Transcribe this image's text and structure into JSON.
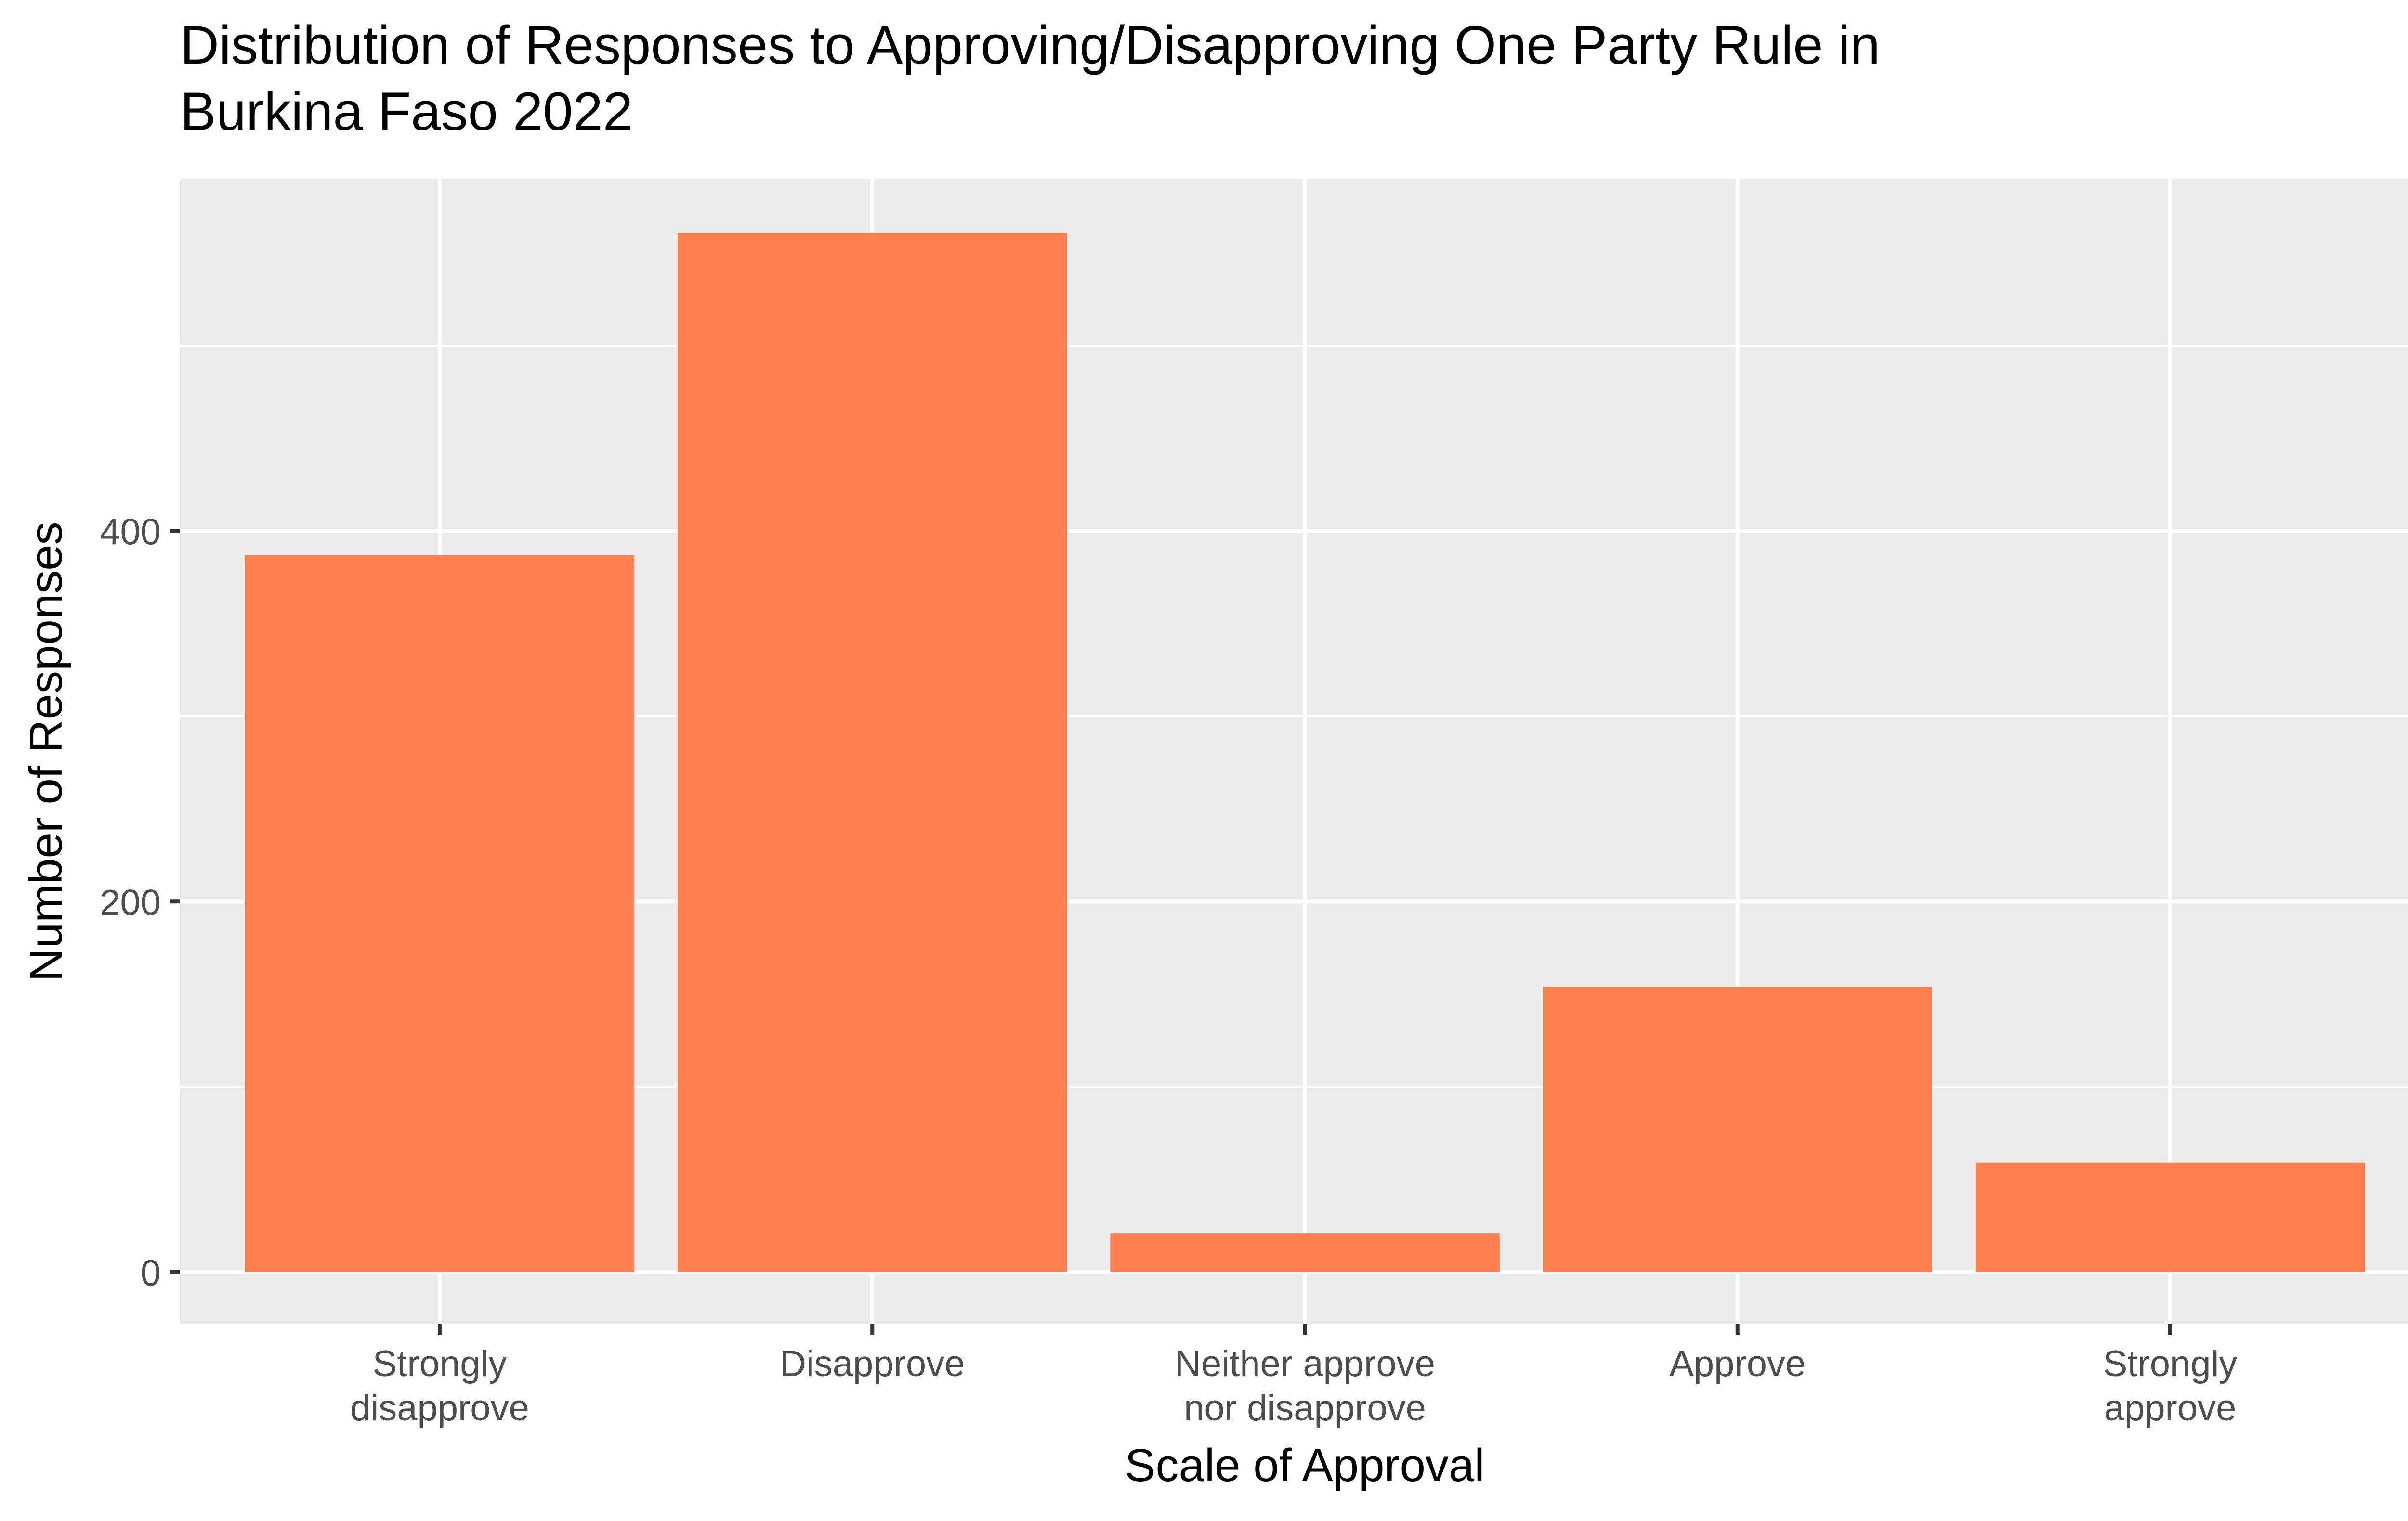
{
  "chart_data": {
    "type": "bar",
    "title_lines": [
      "Distribution of Responses to Approving/Disapproving One Party Rule in",
      "Burkina Faso 2022"
    ],
    "xlabel": "Scale of Approval",
    "ylabel": "Number of Responses",
    "categories": [
      [
        "Strongly",
        "disapprove"
      ],
      [
        "Disapprove"
      ],
      [
        "Neither approve",
        "nor disapprove"
      ],
      [
        "Approve"
      ],
      [
        "Strongly",
        "approve"
      ]
    ],
    "values": [
      387,
      561,
      21,
      154,
      59
    ],
    "ylim": [
      -28.1,
      589.9
    ],
    "yticks": [
      0,
      200,
      400
    ],
    "yticks_minor": [
      100,
      300,
      500
    ],
    "bar_color": "#FF7F50",
    "panel_color": "#EBEBEB",
    "grid_color": "#FFFFFF",
    "grid": true,
    "legend": "none"
  }
}
